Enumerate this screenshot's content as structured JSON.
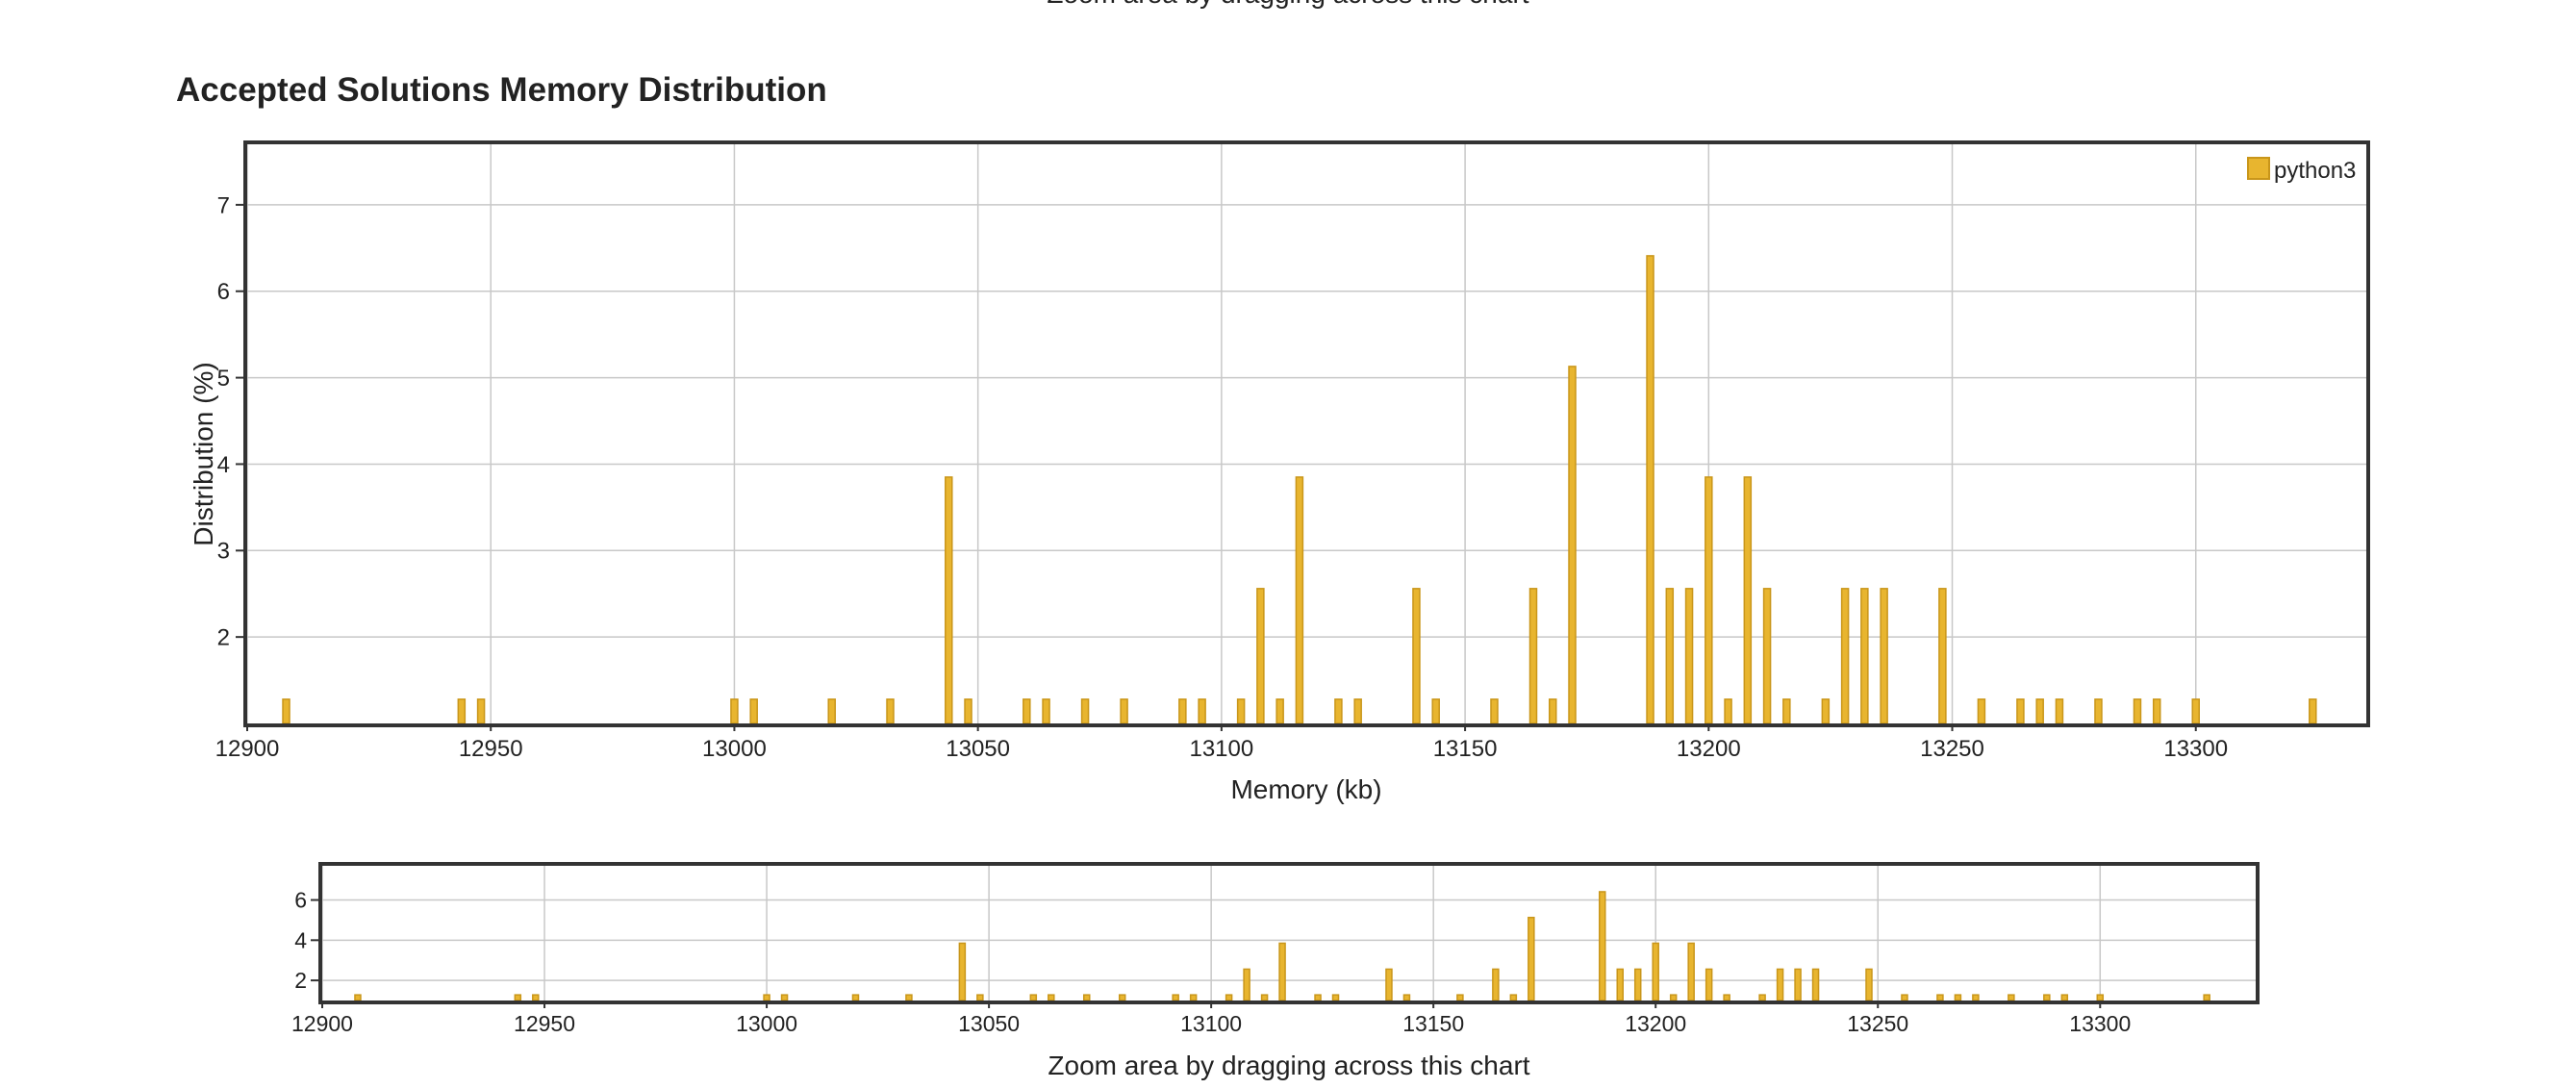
{
  "top_caption": "Zoom area by dragging across this chart",
  "chart_title": "Accepted Solutions Memory Distribution",
  "colors": {
    "bar_fill": "#e8b52f",
    "bar_stroke": "#c9961a",
    "grid": "#c8c8c8",
    "frame": "#333333"
  },
  "chart_data": {
    "type": "bar",
    "title": "Accepted Solutions Memory Distribution",
    "xlabel": "Memory (kb)",
    "ylabel": "Distribution (%)",
    "xlim": [
      12900,
      13335
    ],
    "ylim": [
      1,
      7.7
    ],
    "x_ticks": [
      12900,
      12950,
      13000,
      13050,
      13100,
      13150,
      13200,
      13250,
      13300
    ],
    "y_ticks": [
      2,
      3,
      4,
      5,
      6,
      7
    ],
    "grid": true,
    "legend": {
      "position": "top-right"
    },
    "series": [
      {
        "name": "python3",
        "points": [
          [
            12908,
            1.28
          ],
          [
            12944,
            1.28
          ],
          [
            12948,
            1.28
          ],
          [
            13000,
            1.28
          ],
          [
            13004,
            1.28
          ],
          [
            13020,
            1.28
          ],
          [
            13032,
            1.28
          ],
          [
            13044,
            3.85
          ],
          [
            13048,
            1.28
          ],
          [
            13060,
            1.28
          ],
          [
            13064,
            1.28
          ],
          [
            13072,
            1.28
          ],
          [
            13080,
            1.28
          ],
          [
            13092,
            1.28
          ],
          [
            13096,
            1.28
          ],
          [
            13104,
            1.28
          ],
          [
            13108,
            2.56
          ],
          [
            13112,
            1.28
          ],
          [
            13116,
            3.85
          ],
          [
            13124,
            1.28
          ],
          [
            13128,
            1.28
          ],
          [
            13140,
            2.56
          ],
          [
            13144,
            1.28
          ],
          [
            13156,
            1.28
          ],
          [
            13164,
            2.56
          ],
          [
            13168,
            1.28
          ],
          [
            13172,
            5.13
          ],
          [
            13188,
            6.41
          ],
          [
            13192,
            2.56
          ],
          [
            13196,
            2.56
          ],
          [
            13200,
            3.85
          ],
          [
            13204,
            1.28
          ],
          [
            13208,
            3.85
          ],
          [
            13212,
            2.56
          ],
          [
            13216,
            1.28
          ],
          [
            13224,
            1.28
          ],
          [
            13228,
            2.56
          ],
          [
            13232,
            2.56
          ],
          [
            13236,
            2.56
          ],
          [
            13248,
            2.56
          ],
          [
            13256,
            1.28
          ],
          [
            13264,
            1.28
          ],
          [
            13268,
            1.28
          ],
          [
            13272,
            1.28
          ],
          [
            13280,
            1.28
          ],
          [
            13288,
            1.28
          ],
          [
            13292,
            1.28
          ],
          [
            13300,
            1.28
          ],
          [
            13324,
            1.28
          ]
        ]
      }
    ]
  },
  "navigator": {
    "caption": "Zoom area by dragging across this chart",
    "xlim": [
      12900,
      13335
    ],
    "ylim": [
      1,
      7.7
    ],
    "x_ticks": [
      12900,
      12950,
      13000,
      13050,
      13100,
      13150,
      13200,
      13250,
      13300
    ],
    "y_ticks": [
      2,
      4,
      6
    ]
  }
}
